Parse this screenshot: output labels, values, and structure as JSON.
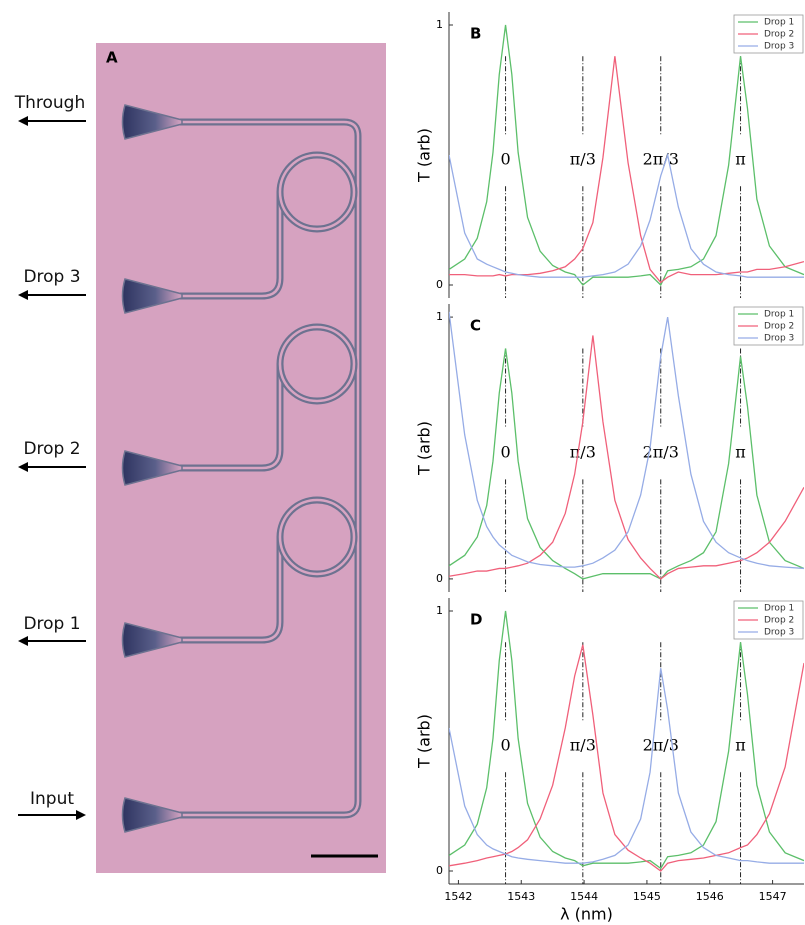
{
  "panel_a": {
    "label": "A",
    "ports": [
      "Through",
      "Drop 3",
      "Drop 2",
      "Drop 1",
      "Input"
    ]
  },
  "chart_data": [
    {
      "type": "line",
      "panel_label": "B",
      "y_label": "T (arb)",
      "x": [
        1541.85,
        1542.1,
        1542.3,
        1542.45,
        1542.55,
        1542.65,
        1542.75,
        1542.85,
        1542.95,
        1543.1,
        1543.3,
        1543.5,
        1543.7,
        1543.85,
        1543.98,
        1544.14,
        1544.3,
        1544.49,
        1544.7,
        1544.9,
        1545.05,
        1545.22,
        1545.33,
        1545.5,
        1545.7,
        1545.9,
        1546.1,
        1546.3,
        1546.49,
        1546.6,
        1546.75,
        1546.95,
        1547.2,
        1547.5
      ],
      "series": [
        {
          "name": "Drop 1",
          "color": "#5cbf6a",
          "values": [
            0.06,
            0.1,
            0.18,
            0.32,
            0.51,
            0.81,
            1.0,
            0.81,
            0.51,
            0.26,
            0.13,
            0.075,
            0.05,
            0.04,
            0.0,
            0.03,
            0.03,
            0.03,
            0.03,
            0.035,
            0.04,
            0.0,
            0.055,
            0.06,
            0.07,
            0.1,
            0.19,
            0.46,
            0.88,
            0.68,
            0.33,
            0.15,
            0.07,
            0.04
          ]
        },
        {
          "name": "Drop 2",
          "color": "#f0607a",
          "values": [
            0.04,
            0.04,
            0.035,
            0.035,
            0.035,
            0.04,
            0.035,
            0.04,
            0.04,
            0.04,
            0.045,
            0.055,
            0.07,
            0.1,
            0.14,
            0.24,
            0.49,
            0.88,
            0.47,
            0.19,
            0.06,
            0.01,
            0.03,
            0.05,
            0.04,
            0.04,
            0.04,
            0.045,
            0.05,
            0.05,
            0.06,
            0.06,
            0.07,
            0.09
          ]
        },
        {
          "name": "Drop 3",
          "color": "#96ace6",
          "values": [
            0.5,
            0.2,
            0.1,
            0.08,
            0.07,
            0.06,
            0.05,
            0.045,
            0.04,
            0.035,
            0.03,
            0.03,
            0.03,
            0.03,
            0.03,
            0.035,
            0.04,
            0.05,
            0.08,
            0.15,
            0.25,
            0.42,
            0.5,
            0.3,
            0.14,
            0.08,
            0.05,
            0.04,
            0.035,
            0.03,
            0.03,
            0.03,
            0.03,
            0.03
          ]
        }
      ],
      "annotations": [
        {
          "text": "0",
          "x": 1542.75
        },
        {
          "text": "π/3",
          "x": 1543.98
        },
        {
          "text": "2π/3",
          "x": 1545.22
        },
        {
          "text": "π",
          "x": 1546.49
        }
      ],
      "xlim": [
        1541.85,
        1547.5
      ],
      "ylim": [
        -0.05,
        1.05
      ],
      "yticks": [
        0,
        1
      ],
      "legend": "upper-right"
    },
    {
      "type": "line",
      "panel_label": "C",
      "y_label": "T (arb)",
      "x": [
        1541.85,
        1542.1,
        1542.3,
        1542.45,
        1542.55,
        1542.65,
        1542.75,
        1542.85,
        1542.95,
        1543.1,
        1543.3,
        1543.5,
        1543.7,
        1543.85,
        1543.98,
        1544.14,
        1544.3,
        1544.49,
        1544.7,
        1544.9,
        1545.05,
        1545.22,
        1545.33,
        1545.5,
        1545.7,
        1545.9,
        1546.1,
        1546.3,
        1546.49,
        1546.6,
        1546.75,
        1546.95,
        1547.2,
        1547.5
      ],
      "series": [
        {
          "name": "Drop 1",
          "color": "#5cbf6a",
          "values": [
            0.05,
            0.09,
            0.16,
            0.28,
            0.45,
            0.71,
            0.88,
            0.71,
            0.45,
            0.23,
            0.12,
            0.07,
            0.04,
            0.02,
            0.0,
            0.01,
            0.02,
            0.02,
            0.02,
            0.02,
            0.02,
            0.0,
            0.03,
            0.05,
            0.07,
            0.1,
            0.18,
            0.44,
            0.85,
            0.66,
            0.32,
            0.14,
            0.07,
            0.04
          ]
        },
        {
          "name": "Drop 2",
          "color": "#f0607a",
          "values": [
            0.01,
            0.02,
            0.03,
            0.03,
            0.035,
            0.04,
            0.04,
            0.045,
            0.05,
            0.06,
            0.09,
            0.14,
            0.25,
            0.4,
            0.6,
            0.93,
            0.6,
            0.3,
            0.15,
            0.08,
            0.04,
            0.0,
            0.02,
            0.04,
            0.045,
            0.05,
            0.05,
            0.06,
            0.07,
            0.08,
            0.1,
            0.14,
            0.22,
            0.35
          ]
        },
        {
          "name": "Drop 3",
          "color": "#96ace6",
          "values": [
            1.02,
            0.55,
            0.3,
            0.2,
            0.16,
            0.13,
            0.11,
            0.09,
            0.08,
            0.065,
            0.055,
            0.05,
            0.045,
            0.045,
            0.05,
            0.06,
            0.08,
            0.11,
            0.18,
            0.32,
            0.5,
            0.85,
            1.0,
            0.7,
            0.4,
            0.22,
            0.14,
            0.1,
            0.08,
            0.07,
            0.06,
            0.05,
            0.045,
            0.04
          ]
        }
      ],
      "annotations": [
        {
          "text": "0",
          "x": 1542.75
        },
        {
          "text": "π/3",
          "x": 1543.98
        },
        {
          "text": "2π/3",
          "x": 1545.22
        },
        {
          "text": "π",
          "x": 1546.49
        }
      ],
      "xlim": [
        1541.85,
        1547.5
      ],
      "ylim": [
        -0.05,
        1.05
      ],
      "yticks": [
        0,
        1
      ],
      "legend": "upper-right"
    },
    {
      "type": "line",
      "panel_label": "D",
      "y_label": "T (arb)",
      "x_label": "λ (nm)",
      "x": [
        1541.85,
        1542.1,
        1542.3,
        1542.45,
        1542.55,
        1542.65,
        1542.75,
        1542.85,
        1542.95,
        1543.1,
        1543.3,
        1543.5,
        1543.7,
        1543.85,
        1543.98,
        1544.14,
        1544.3,
        1544.49,
        1544.7,
        1544.9,
        1545.05,
        1545.22,
        1545.33,
        1545.5,
        1545.7,
        1545.9,
        1546.1,
        1546.3,
        1546.49,
        1546.6,
        1546.75,
        1546.95,
        1547.2,
        1547.5
      ],
      "series": [
        {
          "name": "Drop 1",
          "color": "#5cbf6a",
          "values": [
            0.06,
            0.1,
            0.18,
            0.32,
            0.51,
            0.81,
            1.0,
            0.81,
            0.51,
            0.26,
            0.13,
            0.075,
            0.05,
            0.04,
            0.02,
            0.03,
            0.03,
            0.03,
            0.03,
            0.035,
            0.04,
            0.01,
            0.055,
            0.06,
            0.07,
            0.1,
            0.19,
            0.46,
            0.88,
            0.68,
            0.33,
            0.15,
            0.07,
            0.04
          ]
        },
        {
          "name": "Drop 2",
          "color": "#f0607a",
          "values": [
            0.02,
            0.03,
            0.04,
            0.05,
            0.055,
            0.06,
            0.065,
            0.075,
            0.09,
            0.12,
            0.2,
            0.33,
            0.55,
            0.75,
            0.87,
            0.6,
            0.3,
            0.14,
            0.08,
            0.05,
            0.03,
            0.0,
            0.03,
            0.04,
            0.045,
            0.05,
            0.06,
            0.07,
            0.09,
            0.1,
            0.14,
            0.22,
            0.4,
            0.8
          ]
        },
        {
          "name": "Drop 3",
          "color": "#96ace6",
          "values": [
            0.55,
            0.25,
            0.14,
            0.1,
            0.085,
            0.075,
            0.065,
            0.055,
            0.05,
            0.045,
            0.04,
            0.035,
            0.03,
            0.03,
            0.03,
            0.035,
            0.045,
            0.06,
            0.1,
            0.2,
            0.38,
            0.78,
            0.62,
            0.3,
            0.15,
            0.09,
            0.06,
            0.05,
            0.04,
            0.04,
            0.035,
            0.03,
            0.03,
            0.03
          ]
        }
      ],
      "annotations": [
        {
          "text": "0",
          "x": 1542.75
        },
        {
          "text": "π/3",
          "x": 1543.98
        },
        {
          "text": "2π/3",
          "x": 1545.22
        },
        {
          "text": "π",
          "x": 1546.49
        }
      ],
      "xlim": [
        1541.85,
        1547.5
      ],
      "xticks": [
        1542,
        1543,
        1544,
        1545,
        1546,
        1547
      ],
      "ylim": [
        -0.05,
        1.05
      ],
      "yticks": [
        0,
        1
      ],
      "legend": "upper-right"
    }
  ]
}
